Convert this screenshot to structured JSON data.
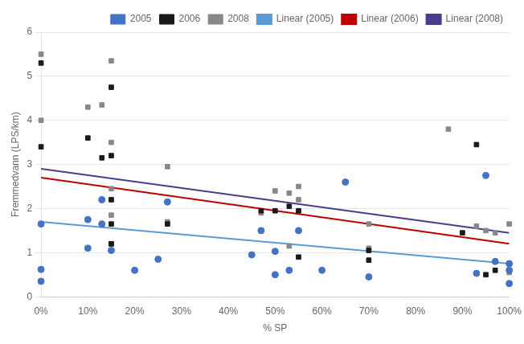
{
  "chart_data": {
    "type": "scatter",
    "x_label": "% SP",
    "y_label": "Fremmedvann (LPS/km)",
    "xlim": [
      0,
      1.0
    ],
    "xticks": [
      {
        "value": 0,
        "label": "0%"
      },
      {
        "value": 0.1,
        "label": "10%"
      },
      {
        "value": 0.2,
        "label": "20%"
      },
      {
        "value": 0.3,
        "label": "30%"
      },
      {
        "value": 0.4,
        "label": "40%"
      },
      {
        "value": 0.5,
        "label": "50%"
      },
      {
        "value": 0.6,
        "label": "60%"
      },
      {
        "value": 0.7,
        "label": "70%"
      },
      {
        "value": 0.8,
        "label": "80%"
      },
      {
        "value": 0.9,
        "label": "90%"
      },
      {
        "value": 1.0,
        "label": "100%"
      }
    ],
    "ylim": [
      0,
      6
    ],
    "yticks": [
      0,
      1,
      2,
      3,
      4,
      5,
      6
    ],
    "grid": "y",
    "legend": "upper right",
    "series": [
      {
        "name": "2005",
        "type": "scatter",
        "marker": "circle",
        "color": "#4472C4",
        "x": [
          0.0,
          0.0,
          0.0,
          0.1,
          0.1,
          0.13,
          0.13,
          0.15,
          0.2,
          0.25,
          0.27,
          0.45,
          0.47,
          0.5,
          0.5,
          0.53,
          0.55,
          0.6,
          0.65,
          0.7,
          0.93,
          0.95,
          0.97,
          1.0,
          1.0,
          1.0
        ],
        "values": [
          0.35,
          0.62,
          1.65,
          1.1,
          1.75,
          1.65,
          2.2,
          1.05,
          0.6,
          0.85,
          2.15,
          0.95,
          1.5,
          0.5,
          1.03,
          0.6,
          1.5,
          0.6,
          2.6,
          0.45,
          0.53,
          2.75,
          0.8,
          0.3,
          0.6,
          0.75
        ]
      },
      {
        "name": "2006",
        "type": "scatter",
        "marker": "square",
        "color": "#1a1a1a",
        "x": [
          0.0,
          0.0,
          0.1,
          0.13,
          0.15,
          0.15,
          0.15,
          0.15,
          0.15,
          0.27,
          0.47,
          0.5,
          0.53,
          0.55,
          0.55,
          0.7,
          0.7,
          0.9,
          0.93,
          0.95,
          0.97,
          1.0
        ],
        "values": [
          3.4,
          5.3,
          3.6,
          3.15,
          4.75,
          3.2,
          2.2,
          1.65,
          1.2,
          1.65,
          1.95,
          1.95,
          2.05,
          0.9,
          1.95,
          1.05,
          0.83,
          1.45,
          3.45,
          0.5,
          0.6,
          0.75
        ]
      },
      {
        "name": "2008",
        "type": "scatter",
        "marker": "square",
        "color": "#888888",
        "x": [
          0.0,
          0.0,
          0.1,
          0.13,
          0.15,
          0.15,
          0.15,
          0.15,
          0.15,
          0.27,
          0.27,
          0.47,
          0.5,
          0.53,
          0.53,
          0.55,
          0.55,
          0.7,
          0.7,
          0.87,
          0.93,
          0.95,
          0.97,
          1.0,
          1.0
        ],
        "values": [
          5.5,
          4.0,
          4.3,
          4.35,
          5.35,
          3.5,
          2.45,
          1.85,
          1.2,
          2.95,
          1.7,
          1.9,
          2.4,
          2.35,
          1.15,
          2.5,
          2.2,
          1.65,
          1.1,
          3.8,
          1.6,
          1.5,
          1.45,
          1.65,
          0.55
        ]
      },
      {
        "name": "Linear (2005)",
        "type": "line",
        "line_style": "solid",
        "color": "#5B9BD5",
        "x": [
          0.0,
          1.0
        ],
        "values": [
          1.7,
          0.75
        ]
      },
      {
        "name": "Linear (2006)",
        "type": "line",
        "line_style": "solid",
        "color": "#C00000",
        "x": [
          0.0,
          1.0
        ],
        "values": [
          2.7,
          1.2
        ]
      },
      {
        "name": "Linear (2008)",
        "type": "line",
        "line_style": "solid",
        "color": "#4B3B8C",
        "x": [
          0.0,
          1.0
        ],
        "values": [
          2.9,
          1.45
        ]
      }
    ]
  }
}
